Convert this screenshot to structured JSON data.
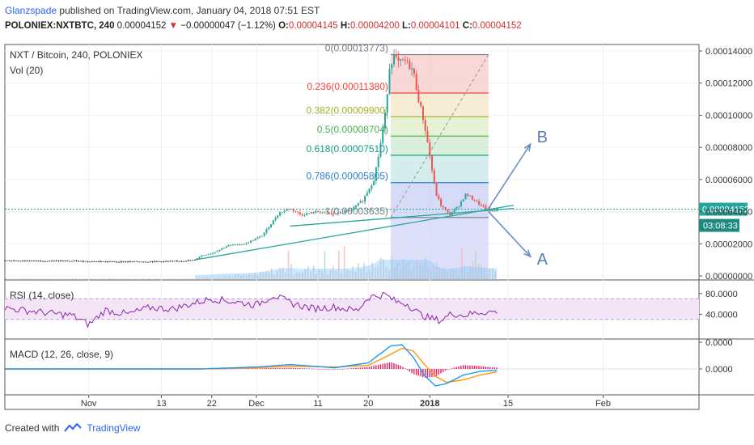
{
  "header": {
    "author": "Glanzspade",
    "published_text": "published on TradingView.com, January 04, 2018 07:51 EST",
    "symbol_line": "POLONIEX:NXTBTC, 240",
    "last": "0.00004152",
    "change_arrow": "▼",
    "change": "−0.00000047 (−1.12%)",
    "o_label": "O:",
    "o": "0.00004145",
    "h_label": "H:",
    "h": "0.00004200",
    "l_label": "L:",
    "l": "0.00004101",
    "c_label": "C:",
    "c": "0.00004152"
  },
  "footer": {
    "created_with": "Created with",
    "brand": "TradingView"
  },
  "colors": {
    "up": "#26a69a",
    "down": "#ef5350",
    "rsi": "#8e24aa",
    "macd": "#2196f3",
    "signal": "#ff9800",
    "price_tag": "#26a69a"
  },
  "chart_data": {
    "type": "candlestick",
    "panes": {
      "main": {
        "title": "NXT / Bitcoin, 240, POLONIEX",
        "volume_label": "Vol (20)",
        "ylim": [
          0.0,
          0.00014
        ],
        "yticks": [
          "0.00014000",
          "0.00012000",
          "0.00010000",
          "0.00008000",
          "0.00006000",
          "0.00004000",
          "0.00002000",
          "0.00000000"
        ],
        "ytick_values": [
          0.00014,
          0.00012,
          0.0001,
          8e-05,
          6e-05,
          4e-05,
          2e-05,
          0.0
        ],
        "last_price": "0.00004152",
        "last_price_value": 4.152e-05,
        "countdown": "03:08:33"
      },
      "rsi": {
        "label": "RSI (14, close)",
        "ylim": [
          0,
          100
        ],
        "yticks": [
          "80.0000",
          "40.0000"
        ],
        "ytick_values": [
          80,
          40
        ],
        "band": [
          30,
          70
        ]
      },
      "macd": {
        "label": "MACD (12, 26, close, 9)",
        "yticks": [
          "0.0000",
          "0.0000"
        ]
      }
    },
    "x_axis": {
      "labels": [
        "Nov",
        "13",
        "22",
        "Dec",
        "11",
        "20",
        "2018",
        "15",
        "Feb"
      ],
      "label_days": [
        0,
        13,
        22,
        30,
        41,
        50,
        61,
        75,
        92
      ],
      "xlim_days": [
        -15,
        109
      ]
    },
    "price_trend": [
      {
        "d": -15,
        "p": 9.5e-06
      },
      {
        "d": -5,
        "p": 9.3e-06
      },
      {
        "d": 5,
        "p": 8.8e-06
      },
      {
        "d": 15,
        "p": 9e-06
      },
      {
        "d": 19,
        "p": 9.8e-06
      },
      {
        "d": 20,
        "p": 1.25e-05
      },
      {
        "d": 22,
        "p": 1.4e-05
      },
      {
        "d": 25,
        "p": 1.9e-05
      },
      {
        "d": 28,
        "p": 2e-05
      },
      {
        "d": 31,
        "p": 2.5e-05
      },
      {
        "d": 34,
        "p": 3.9e-05
      },
      {
        "d": 36,
        "p": 4.2e-05
      },
      {
        "d": 38,
        "p": 3.8e-05
      },
      {
        "d": 41,
        "p": 4e-05
      },
      {
        "d": 44,
        "p": 3.85e-05
      },
      {
        "d": 47,
        "p": 4.1e-05
      },
      {
        "d": 49,
        "p": 4.7e-05
      },
      {
        "d": 51,
        "p": 6e-05
      },
      {
        "d": 52,
        "p": 7.8e-05
      },
      {
        "d": 53,
        "p": 0.0001
      },
      {
        "d": 53.8,
        "p": 0.00013
      },
      {
        "d": 54.5,
        "p": 0.000137
      },
      {
        "d": 55.5,
        "p": 0.000132
      },
      {
        "d": 56.5,
        "p": 0.000134
      },
      {
        "d": 58,
        "p": 0.000128
      },
      {
        "d": 59,
        "p": 0.00011
      },
      {
        "d": 60,
        "p": 9.5e-05
      },
      {
        "d": 61,
        "p": 7.5e-05
      },
      {
        "d": 62,
        "p": 5.2e-05
      },
      {
        "d": 63,
        "p": 4.4e-05
      },
      {
        "d": 64.5,
        "p": 3.8e-05
      },
      {
        "d": 66,
        "p": 4.3e-05
      },
      {
        "d": 67.5,
        "p": 5.1e-05
      },
      {
        "d": 69,
        "p": 4.7e-05
      },
      {
        "d": 70.5,
        "p": 4.3e-05
      },
      {
        "d": 72,
        "p": 4e-05
      },
      {
        "d": 73,
        "p": 4.15e-05
      }
    ],
    "fibonacci": {
      "levels": [
        {
          "ratio": "0",
          "price": 0.00013773,
          "label": "0(0.00013773)",
          "color": "#787b86"
        },
        {
          "ratio": "0.236",
          "price": 0.0001138,
          "label": "0.236(0.00011380)",
          "color": "#f44336"
        },
        {
          "ratio": "0.382",
          "price": 9.9e-05,
          "label": "0.382(0.00009900)",
          "color": "#a5b024"
        },
        {
          "ratio": "0.5",
          "price": 8.704e-05,
          "label": "0.5(0.00008704)",
          "color": "#4caf50"
        },
        {
          "ratio": "0.618",
          "price": 7.51e-05,
          "label": "0.618(0.00007510)",
          "color": "#16a085"
        },
        {
          "ratio": "0.786",
          "price": 5.805e-05,
          "label": "0.786(0.00005805)",
          "color": "#2a7fd0"
        },
        {
          "ratio": "1",
          "price": 3.635e-05,
          "label": "1(0.00003635)",
          "color": "#787b86"
        }
      ],
      "x_start_day": 54,
      "x_end_day": 71.5
    },
    "annotations": [
      {
        "text": "B",
        "type": "arrow",
        "from_day": 71.5,
        "from_price": 4.2e-05,
        "to_day": 79,
        "to_price": 8.2e-05
      },
      {
        "text": "A",
        "type": "arrow",
        "from_day": 71.5,
        "from_price": 4e-05,
        "to_day": 79,
        "to_price": 1.2e-05
      }
    ],
    "trendlines": [
      {
        "from_day": 19,
        "from_price": 1e-05,
        "to_day": 76,
        "to_price": 4.4e-05
      },
      {
        "from_day": 36,
        "from_price": 3.1e-05,
        "to_day": 76,
        "to_price": 4.2e-05
      }
    ],
    "rsi_trend": [
      {
        "d": -15,
        "v": 52
      },
      {
        "d": -11,
        "v": 47
      },
      {
        "d": -7,
        "v": 42
      },
      {
        "d": -3,
        "v": 38
      },
      {
        "d": 0,
        "v": 20
      },
      {
        "d": 3,
        "v": 48
      },
      {
        "d": 7,
        "v": 40
      },
      {
        "d": 11,
        "v": 53
      },
      {
        "d": 15,
        "v": 50
      },
      {
        "d": 19,
        "v": 62
      },
      {
        "d": 22,
        "v": 70
      },
      {
        "d": 26,
        "v": 64
      },
      {
        "d": 30,
        "v": 58
      },
      {
        "d": 33,
        "v": 77
      },
      {
        "d": 36,
        "v": 62
      },
      {
        "d": 40,
        "v": 51
      },
      {
        "d": 44,
        "v": 54
      },
      {
        "d": 48,
        "v": 47
      },
      {
        "d": 50,
        "v": 73
      },
      {
        "d": 53,
        "v": 78
      },
      {
        "d": 55,
        "v": 64
      },
      {
        "d": 57,
        "v": 60
      },
      {
        "d": 59,
        "v": 42
      },
      {
        "d": 61,
        "v": 32
      },
      {
        "d": 63,
        "v": 28
      },
      {
        "d": 65,
        "v": 42
      },
      {
        "d": 67,
        "v": 38
      },
      {
        "d": 70,
        "v": 44
      },
      {
        "d": 73,
        "v": 45
      }
    ],
    "macd_trend": [
      {
        "d": -15,
        "m": 0.0,
        "s": 0.0
      },
      {
        "d": 20,
        "m": 0.0,
        "s": 0.0
      },
      {
        "d": 30,
        "m": 0.08,
        "s": 0.05
      },
      {
        "d": 36,
        "m": 0.18,
        "s": 0.12
      },
      {
        "d": 44,
        "m": 0.05,
        "s": 0.08
      },
      {
        "d": 50,
        "m": 0.25,
        "s": 0.15
      },
      {
        "d": 54,
        "m": 0.95,
        "s": 0.6
      },
      {
        "d": 56,
        "m": 1.0,
        "s": 0.85
      },
      {
        "d": 58,
        "m": 0.5,
        "s": 0.75
      },
      {
        "d": 60,
        "m": -0.25,
        "s": 0.2
      },
      {
        "d": 62,
        "m": -0.7,
        "s": -0.3
      },
      {
        "d": 64,
        "m": -0.6,
        "s": -0.55
      },
      {
        "d": 67,
        "m": -0.25,
        "s": -0.45
      },
      {
        "d": 70,
        "m": -0.1,
        "s": -0.25
      },
      {
        "d": 73,
        "m": -0.05,
        "s": -0.12
      }
    ]
  }
}
